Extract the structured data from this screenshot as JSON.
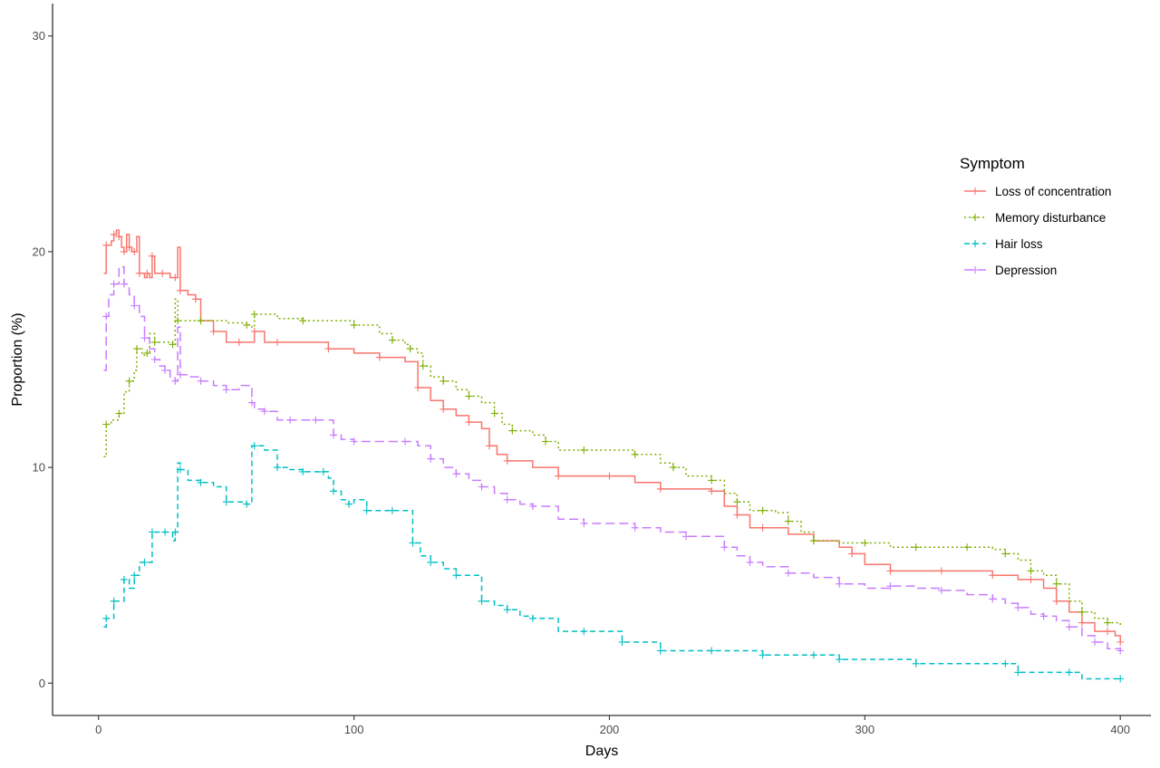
{
  "chart_data": {
    "type": "line",
    "xlabel": "Days",
    "ylabel": "Proportion (%)",
    "xlim": [
      -18,
      412
    ],
    "ylim": [
      -1.5,
      31.5
    ],
    "x_ticks": [
      0,
      100,
      200,
      300,
      400
    ],
    "y_ticks": [
      0,
      10,
      20,
      30
    ],
    "grid": false,
    "legend": {
      "title": "Symptom",
      "position": "right"
    },
    "series": [
      {
        "name": "Loss of concentration",
        "color": "#F8766D",
        "dash": "solid",
        "x": [
          2,
          3,
          5,
          6,
          7,
          8,
          9,
          10,
          11,
          12,
          13,
          14,
          15,
          16,
          18,
          19,
          20,
          21,
          22,
          25,
          28,
          30,
          31,
          32,
          35,
          38,
          40,
          45,
          50,
          55,
          60,
          61,
          65,
          70,
          80,
          90,
          100,
          110,
          120,
          125,
          130,
          135,
          140,
          145,
          150,
          153,
          156,
          160,
          170,
          180,
          190,
          200,
          210,
          220,
          230,
          240,
          245,
          250,
          255,
          260,
          270,
          280,
          290,
          295,
          300,
          310,
          320,
          330,
          340,
          350,
          360,
          365,
          370,
          375,
          380,
          385,
          390,
          395,
          398,
          400
        ],
        "y": [
          19.0,
          20.3,
          20.5,
          20.8,
          21.0,
          20.7,
          20.2,
          20.0,
          20.8,
          20.2,
          20.0,
          20.0,
          20.7,
          19.0,
          18.8,
          19.0,
          18.8,
          19.8,
          19.0,
          19.0,
          18.8,
          18.8,
          20.2,
          18.2,
          18.0,
          17.8,
          16.8,
          16.3,
          15.8,
          15.8,
          15.8,
          16.3,
          15.8,
          15.8,
          15.8,
          15.5,
          15.3,
          15.1,
          14.9,
          13.7,
          13.1,
          12.7,
          12.4,
          12.1,
          11.8,
          11.0,
          10.6,
          10.3,
          10.0,
          9.6,
          9.6,
          9.6,
          9.3,
          9.0,
          9.0,
          8.9,
          8.2,
          7.8,
          7.2,
          7.2,
          6.9,
          6.6,
          6.3,
          6.0,
          5.5,
          5.2,
          5.2,
          5.2,
          5.2,
          5.0,
          4.8,
          4.8,
          4.4,
          3.8,
          3.3,
          2.8,
          2.4,
          2.4,
          2.2,
          1.9
        ]
      },
      {
        "name": "Memory disturbance",
        "color": "#7CAE00",
        "dash": "dotted",
        "x": [
          2,
          3,
          5,
          8,
          10,
          12,
          14,
          15,
          17,
          19,
          20,
          22,
          25,
          29,
          30,
          31,
          35,
          40,
          50,
          58,
          60,
          61,
          70,
          80,
          90,
          100,
          110,
          115,
          120,
          122,
          125,
          127,
          130,
          135,
          140,
          145,
          150,
          155,
          158,
          162,
          170,
          175,
          180,
          190,
          200,
          210,
          220,
          225,
          230,
          240,
          245,
          250,
          255,
          260,
          265,
          270,
          275,
          280,
          290,
          300,
          310,
          320,
          330,
          340,
          350,
          355,
          360,
          365,
          370,
          375,
          380,
          385,
          390,
          395,
          400
        ],
        "y": [
          10.5,
          12.0,
          12.2,
          12.5,
          13.5,
          14.0,
          14.5,
          15.5,
          15.2,
          15.3,
          16.2,
          15.8,
          15.8,
          15.7,
          17.8,
          16.8,
          16.8,
          16.8,
          16.7,
          16.6,
          16.5,
          17.1,
          16.9,
          16.8,
          16.8,
          16.6,
          16.2,
          15.9,
          15.7,
          15.5,
          15.3,
          14.7,
          14.2,
          14.0,
          13.6,
          13.3,
          13.0,
          12.5,
          12.0,
          11.7,
          11.5,
          11.2,
          10.8,
          10.8,
          10.8,
          10.6,
          10.2,
          10.0,
          9.6,
          9.4,
          8.8,
          8.4,
          8.0,
          8.0,
          7.9,
          7.5,
          7.0,
          6.6,
          6.5,
          6.5,
          6.3,
          6.3,
          6.3,
          6.3,
          6.2,
          6.0,
          5.7,
          5.2,
          5.0,
          4.6,
          3.8,
          3.3,
          3.0,
          2.8,
          2.6
        ]
      },
      {
        "name": "Hair loss",
        "color": "#00BFC4",
        "dash": "dashed",
        "x": [
          2,
          3,
          4,
          6,
          8,
          10,
          12,
          14,
          16,
          18,
          20,
          21,
          23,
          26,
          29,
          30,
          31,
          32,
          35,
          40,
          45,
          50,
          55,
          58,
          60,
          61,
          65,
          70,
          75,
          80,
          85,
          88,
          90,
          92,
          95,
          98,
          100,
          105,
          110,
          115,
          120,
          123,
          126,
          130,
          135,
          140,
          145,
          150,
          155,
          160,
          165,
          170,
          180,
          190,
          200,
          205,
          210,
          220,
          230,
          240,
          250,
          260,
          270,
          280,
          285,
          290,
          300,
          320,
          340,
          355,
          358,
          360,
          370,
          380,
          385,
          400
        ],
        "y": [
          2.6,
          3.0,
          3.0,
          3.8,
          3.8,
          4.8,
          4.4,
          5.0,
          5.6,
          5.6,
          5.6,
          7.0,
          7.0,
          7.0,
          6.6,
          7.0,
          10.2,
          9.9,
          9.4,
          9.3,
          9.1,
          8.4,
          8.4,
          8.3,
          11.0,
          11.0,
          10.8,
          10.0,
          9.9,
          9.8,
          9.8,
          9.8,
          9.5,
          8.9,
          8.5,
          8.3,
          8.5,
          8.0,
          8.0,
          8.0,
          8.0,
          6.5,
          5.9,
          5.6,
          5.3,
          5.0,
          5.0,
          3.8,
          3.6,
          3.4,
          3.1,
          3.0,
          2.4,
          2.4,
          2.4,
          1.9,
          1.9,
          1.5,
          1.5,
          1.5,
          1.5,
          1.3,
          1.3,
          1.3,
          1.3,
          1.1,
          1.1,
          0.9,
          0.9,
          0.9,
          0.9,
          0.5,
          0.5,
          0.5,
          0.2,
          0.2
        ]
      },
      {
        "name": "Depression",
        "color": "#C77CFF",
        "dash": "longdash",
        "x": [
          2,
          3,
          4,
          6,
          8,
          10,
          12,
          14,
          16,
          18,
          20,
          22,
          24,
          26,
          28,
          30,
          31,
          32,
          35,
          40,
          45,
          50,
          55,
          60,
          61,
          65,
          70,
          75,
          80,
          85,
          90,
          92,
          95,
          100,
          110,
          120,
          125,
          130,
          135,
          140,
          145,
          150,
          155,
          160,
          165,
          170,
          180,
          190,
          200,
          210,
          220,
          230,
          240,
          245,
          250,
          255,
          260,
          270,
          280,
          290,
          300,
          310,
          320,
          330,
          340,
          350,
          355,
          360,
          365,
          370,
          375,
          380,
          385,
          390,
          395,
          400
        ],
        "y": [
          14.5,
          17.0,
          18.0,
          18.5,
          19.3,
          18.5,
          18.0,
          17.5,
          17.0,
          16.0,
          15.5,
          15.0,
          14.7,
          14.5,
          14.2,
          14.0,
          16.5,
          14.3,
          14.2,
          14.0,
          13.8,
          13.6,
          13.8,
          13.0,
          12.7,
          12.6,
          12.2,
          12.2,
          12.2,
          12.2,
          12.2,
          11.5,
          11.3,
          11.2,
          11.2,
          11.2,
          11.0,
          10.4,
          10.0,
          9.7,
          9.4,
          9.1,
          8.8,
          8.5,
          8.3,
          8.2,
          7.6,
          7.4,
          7.4,
          7.2,
          7.0,
          6.8,
          6.8,
          6.3,
          5.9,
          5.6,
          5.4,
          5.1,
          4.9,
          4.6,
          4.4,
          4.5,
          4.4,
          4.3,
          4.1,
          3.9,
          3.7,
          3.5,
          3.2,
          3.1,
          2.9,
          2.6,
          2.2,
          1.9,
          1.6,
          1.5
        ]
      }
    ]
  }
}
